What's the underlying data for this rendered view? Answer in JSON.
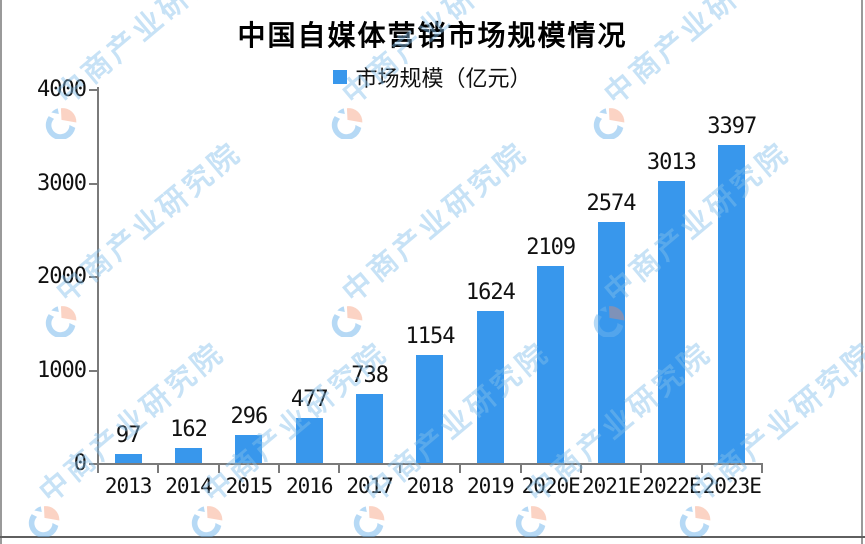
{
  "page": {
    "title": "中国自媒体营销市场规模情况"
  },
  "chart_data": {
    "type": "bar",
    "title": "中国自媒体营销市场规模情况",
    "legend": "市场规模（亿元）",
    "legend_position": "top",
    "categories": [
      "2013",
      "2014",
      "2015",
      "2016",
      "2017",
      "2018",
      "2019",
      "2020E",
      "2021E",
      "2022E",
      "2023E"
    ],
    "values": [
      97,
      162,
      296,
      477,
      738,
      1154,
      1624,
      2109,
      2574,
      3013,
      3397
    ],
    "value_labels": true,
    "xlabel": "",
    "ylabel": "",
    "ylim": [
      0,
      4000
    ],
    "yticks": [
      0,
      1000,
      2000,
      3000,
      4000
    ],
    "grid": false,
    "bar_color": "#3897EC",
    "axis_color": "#7a7a7a",
    "text_color": "#111111"
  },
  "watermark": {
    "text": "中商产业研究院",
    "text_color": "rgba(130,190,235,0.45)",
    "logo_blue": "rgba(110,180,235,0.5)",
    "logo_pink": "rgba(245,140,100,0.38)"
  }
}
